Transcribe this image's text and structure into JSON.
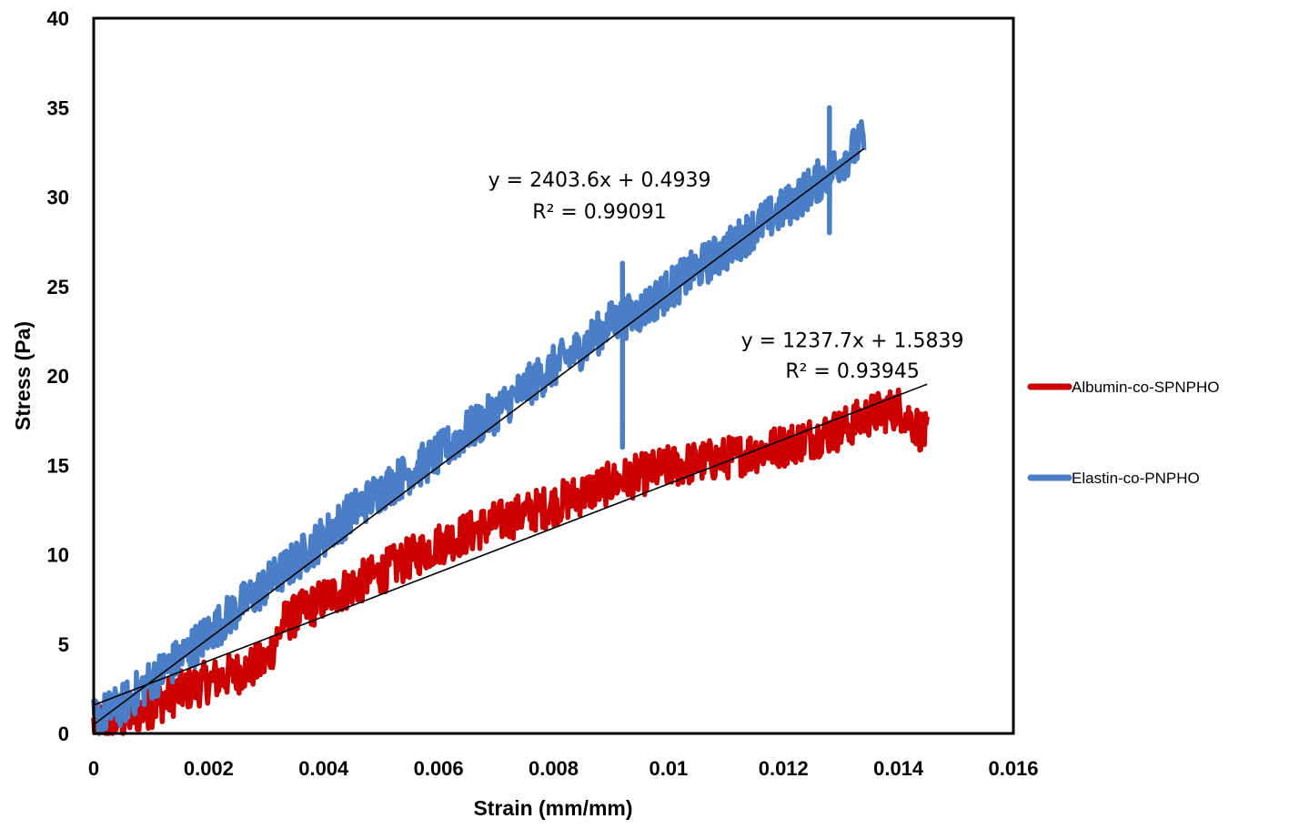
{
  "chart_data": {
    "type": "line",
    "title": "",
    "xlabel": "Strain (mm/mm)",
    "ylabel": "Stress (Pa)",
    "xlim": [
      0,
      0.016
    ],
    "ylim": [
      0,
      40
    ],
    "x_ticks": [
      "0",
      "0.002",
      "0.004",
      "0.006",
      "0.008",
      "0.01",
      "0.012",
      "0.014",
      "0.016"
    ],
    "y_ticks": [
      "0",
      "5",
      "10",
      "15",
      "20",
      "25",
      "30",
      "35",
      "40"
    ],
    "grid": false,
    "legend_position": "right",
    "series": [
      {
        "name": "Albumin-co-SPNPHO",
        "color": "#CC0000",
        "x_range": [
          0,
          0.0145
        ],
        "points": [
          [
            0.0,
            0.5
          ],
          [
            0.0005,
            0.8
          ],
          [
            0.001,
            1.5
          ],
          [
            0.0015,
            2.3
          ],
          [
            0.002,
            2.9
          ],
          [
            0.0025,
            3.4
          ],
          [
            0.003,
            4.0
          ],
          [
            0.0033,
            6.2
          ],
          [
            0.004,
            7.5
          ],
          [
            0.005,
            9.0
          ],
          [
            0.006,
            10.6
          ],
          [
            0.007,
            11.8
          ],
          [
            0.008,
            12.8
          ],
          [
            0.009,
            14.0
          ],
          [
            0.01,
            14.9
          ],
          [
            0.011,
            15.4
          ],
          [
            0.012,
            16.1
          ],
          [
            0.013,
            17.0
          ],
          [
            0.0135,
            17.8
          ],
          [
            0.014,
            18.2
          ],
          [
            0.0145,
            16.6
          ]
        ],
        "trendline": {
          "equation": "y = 1237.7x + 1.5839",
          "r_squared": "R² = 0.93945",
          "slope": 1237.7,
          "intercept": 1.5839
        }
      },
      {
        "name": "Elastin-co-PNPHO",
        "color": "#4A7EC6",
        "x_range": [
          0,
          0.0134
        ],
        "points": [
          [
            0.0,
            0.8
          ],
          [
            0.0005,
            1.6
          ],
          [
            0.001,
            3.0
          ],
          [
            0.0015,
            4.2
          ],
          [
            0.002,
            5.6
          ],
          [
            0.0025,
            7.0
          ],
          [
            0.003,
            8.3
          ],
          [
            0.0035,
            9.6
          ],
          [
            0.004,
            11.0
          ],
          [
            0.0045,
            12.4
          ],
          [
            0.005,
            13.6
          ],
          [
            0.0055,
            14.6
          ],
          [
            0.006,
            15.6
          ],
          [
            0.0065,
            16.9
          ],
          [
            0.007,
            18.0
          ],
          [
            0.0075,
            19.3
          ],
          [
            0.008,
            20.5
          ],
          [
            0.0085,
            21.6
          ],
          [
            0.009,
            23.0
          ],
          [
            0.0092,
            23.2
          ],
          [
            0.0095,
            23.6
          ],
          [
            0.01,
            24.8
          ],
          [
            0.0105,
            26.0
          ],
          [
            0.011,
            27.0
          ],
          [
            0.0115,
            28.3
          ],
          [
            0.012,
            29.3
          ],
          [
            0.0125,
            30.6
          ],
          [
            0.013,
            32.0
          ],
          [
            0.0134,
            33.2
          ]
        ],
        "spikes": [
          [
            0.0092,
            16.0
          ],
          [
            0.0092,
            26.3
          ],
          [
            0.0128,
            28.0
          ],
          [
            0.0128,
            35.0
          ]
        ],
        "trendline": {
          "equation": "y = 2403.6x + 0.4939",
          "r_squared": "R² = 0.99091",
          "slope": 2403.6,
          "intercept": 0.4939
        }
      }
    ],
    "annotations": [
      {
        "text": "y = 2403.6x + 0.4939",
        "at": [
          0.0088,
          31.0
        ]
      },
      {
        "text": "R² = 0.99091",
        "at": [
          0.0088,
          29.2
        ]
      },
      {
        "text": "y = 1237.7x + 1.5839",
        "at": [
          0.0132,
          22.0
        ]
      },
      {
        "text": "R² = 0.93945",
        "at": [
          0.0132,
          20.3
        ]
      }
    ]
  }
}
